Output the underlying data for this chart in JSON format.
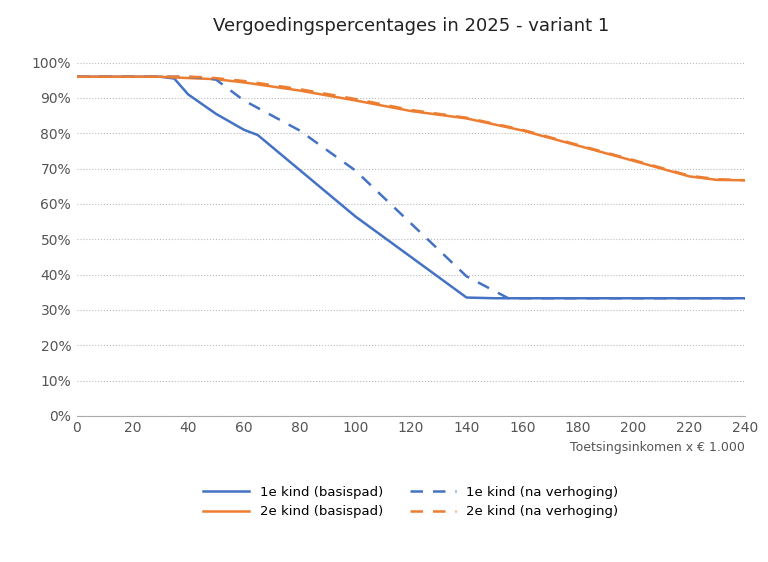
{
  "title": "Vergoedingspercentages in 2025 - variant 1",
  "xlabel": "Toetsingsinkomen x € 1.000",
  "xlim": [
    0,
    240
  ],
  "ylim": [
    0,
    1.05
  ],
  "xticks": [
    0,
    20,
    40,
    60,
    80,
    100,
    120,
    140,
    160,
    180,
    200,
    220,
    240
  ],
  "yticks": [
    0.0,
    0.1,
    0.2,
    0.3,
    0.4,
    0.5,
    0.6,
    0.7,
    0.8,
    0.9,
    1.0
  ],
  "background_color": "#ffffff",
  "grid_color": "#bbbbbb",
  "blue_color": "#4472c4",
  "orange_color": "#ed7d31",
  "line1_solid_x": [
    0,
    30,
    35,
    40,
    50,
    60,
    65,
    100,
    140,
    150,
    160,
    240
  ],
  "line1_solid_y": [
    0.96,
    0.96,
    0.955,
    0.91,
    0.855,
    0.81,
    0.795,
    0.565,
    0.335,
    0.333,
    0.333,
    0.333
  ],
  "line2_solid_x": [
    0,
    30,
    35,
    50,
    60,
    80,
    100,
    120,
    140,
    160,
    180,
    200,
    220,
    230,
    240
  ],
  "line2_solid_y": [
    0.96,
    0.96,
    0.958,
    0.953,
    0.944,
    0.921,
    0.893,
    0.863,
    0.842,
    0.808,
    0.765,
    0.722,
    0.678,
    0.668,
    0.667
  ],
  "line1_dashed_x": [
    0,
    40,
    45,
    50,
    60,
    80,
    100,
    120,
    140,
    155,
    160,
    240
  ],
  "line1_dashed_y": [
    0.96,
    0.96,
    0.957,
    0.952,
    0.893,
    0.808,
    0.695,
    0.545,
    0.395,
    0.333,
    0.333,
    0.333
  ],
  "line2_dashed_x": [
    0,
    30,
    40,
    45,
    50,
    60,
    80,
    100,
    120,
    140,
    160,
    180,
    200,
    220,
    230,
    240
  ],
  "line2_dashed_y": [
    0.96,
    0.96,
    0.96,
    0.959,
    0.956,
    0.948,
    0.925,
    0.897,
    0.866,
    0.844,
    0.81,
    0.767,
    0.724,
    0.68,
    0.67,
    0.667
  ],
  "legend_labels": [
    "1e kind (basispad)",
    "2e kind (basispad)",
    "1e kind (na verhoging)",
    "2e kind (na verhoging)"
  ]
}
